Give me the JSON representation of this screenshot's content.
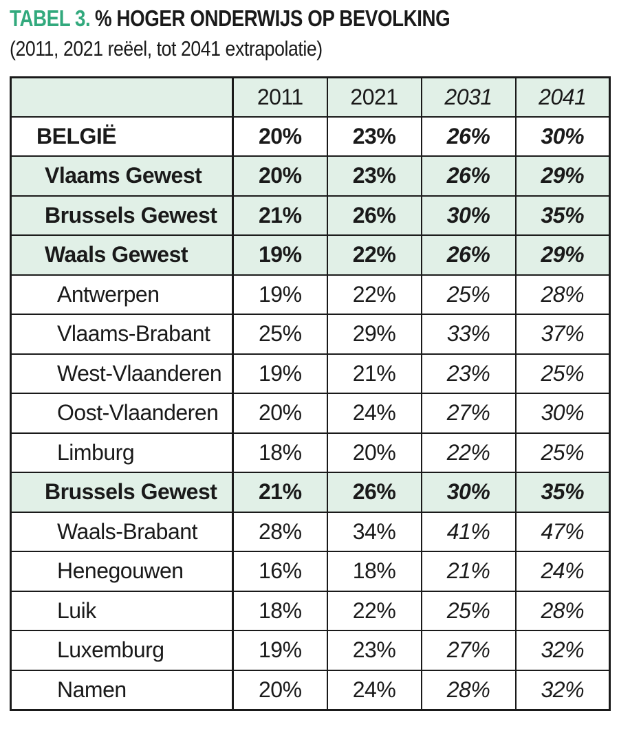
{
  "header": {
    "tag": "TABEL 3.",
    "title": "% HOGER ONDERWIJS OP BEVOLKING",
    "subtitle": "(2011, 2021 reëel, tot 2041 extrapolatie)"
  },
  "colors": {
    "accent_green": "#32a97d",
    "row_highlight": "#e1f0e7",
    "ink": "#1a1a1a"
  },
  "table": {
    "columns": [
      "",
      "2011",
      "2021",
      "2031",
      "2041"
    ],
    "rows": [
      {
        "label": "BELGIË",
        "values": [
          "20%",
          "23%",
          "26%",
          "30%"
        ]
      },
      {
        "label": "Vlaams Gewest",
        "values": [
          "20%",
          "23%",
          "26%",
          "29%"
        ]
      },
      {
        "label": "Brussels Gewest",
        "values": [
          "21%",
          "26%",
          "30%",
          "35%"
        ]
      },
      {
        "label": "Waals Gewest",
        "values": [
          "19%",
          "22%",
          "26%",
          "29%"
        ]
      },
      {
        "label": "Antwerpen",
        "values": [
          "19%",
          "22%",
          "25%",
          "28%"
        ]
      },
      {
        "label": "Vlaams-Brabant",
        "values": [
          "25%",
          "29%",
          "33%",
          "37%"
        ]
      },
      {
        "label": "West-Vlaanderen",
        "values": [
          "19%",
          "21%",
          "23%",
          "25%"
        ]
      },
      {
        "label": "Oost-Vlaanderen",
        "values": [
          "20%",
          "24%",
          "27%",
          "30%"
        ]
      },
      {
        "label": "Limburg",
        "values": [
          "18%",
          "20%",
          "22%",
          "25%"
        ]
      },
      {
        "label": "Brussels Gewest",
        "values": [
          "21%",
          "26%",
          "30%",
          "35%"
        ]
      },
      {
        "label": "Waals-Brabant",
        "values": [
          "28%",
          "34%",
          "41%",
          "47%"
        ]
      },
      {
        "label": "Henegouwen",
        "values": [
          "16%",
          "18%",
          "21%",
          "24%"
        ]
      },
      {
        "label": "Luik",
        "values": [
          "18%",
          "22%",
          "25%",
          "28%"
        ]
      },
      {
        "label": "Luxemburg",
        "values": [
          "19%",
          "23%",
          "27%",
          "32%"
        ]
      },
      {
        "label": "Namen",
        "values": [
          "20%",
          "24%",
          "28%",
          "32%"
        ]
      }
    ]
  },
  "chart_data": {
    "type": "table",
    "title": "TABEL 3. % HOGER ONDERWIJS OP BEVOLKING",
    "subtitle": "(2011, 2021 reëel, tot 2041 extrapolatie)",
    "columns": [
      "2011",
      "2021",
      "2031",
      "2041"
    ],
    "real_columns": [
      "2011",
      "2021"
    ],
    "extrapolated_columns": [
      "2031",
      "2041"
    ],
    "rows": [
      {
        "label": "BELGIË",
        "level": "country",
        "highlighted": false,
        "values": [
          20,
          23,
          26,
          30
        ]
      },
      {
        "label": "Vlaams Gewest",
        "level": "region",
        "highlighted": true,
        "values": [
          20,
          23,
          26,
          29
        ]
      },
      {
        "label": "Brussels Gewest",
        "level": "region",
        "highlighted": true,
        "values": [
          21,
          26,
          30,
          35
        ]
      },
      {
        "label": "Waals Gewest",
        "level": "region",
        "highlighted": true,
        "values": [
          19,
          22,
          26,
          29
        ]
      },
      {
        "label": "Antwerpen",
        "level": "province",
        "highlighted": false,
        "values": [
          19,
          22,
          25,
          28
        ]
      },
      {
        "label": "Vlaams-Brabant",
        "level": "province",
        "highlighted": false,
        "values": [
          25,
          29,
          33,
          37
        ]
      },
      {
        "label": "West-Vlaanderen",
        "level": "province",
        "highlighted": false,
        "values": [
          19,
          21,
          23,
          25
        ]
      },
      {
        "label": "Oost-Vlaanderen",
        "level": "province",
        "highlighted": false,
        "values": [
          20,
          24,
          27,
          30
        ]
      },
      {
        "label": "Limburg",
        "level": "province",
        "highlighted": false,
        "values": [
          18,
          20,
          22,
          25
        ]
      },
      {
        "label": "Brussels Gewest",
        "level": "region",
        "highlighted": true,
        "values": [
          21,
          26,
          30,
          35
        ]
      },
      {
        "label": "Waals-Brabant",
        "level": "province",
        "highlighted": false,
        "values": [
          28,
          34,
          41,
          47
        ]
      },
      {
        "label": "Henegouwen",
        "level": "province",
        "highlighted": false,
        "values": [
          16,
          18,
          21,
          24
        ]
      },
      {
        "label": "Luik",
        "level": "province",
        "highlighted": false,
        "values": [
          18,
          22,
          25,
          28
        ]
      },
      {
        "label": "Luxemburg",
        "level": "province",
        "highlighted": false,
        "values": [
          19,
          23,
          27,
          32
        ]
      },
      {
        "label": "Namen",
        "level": "province",
        "highlighted": false,
        "values": [
          20,
          24,
          28,
          32
        ]
      }
    ],
    "unit": "%"
  }
}
